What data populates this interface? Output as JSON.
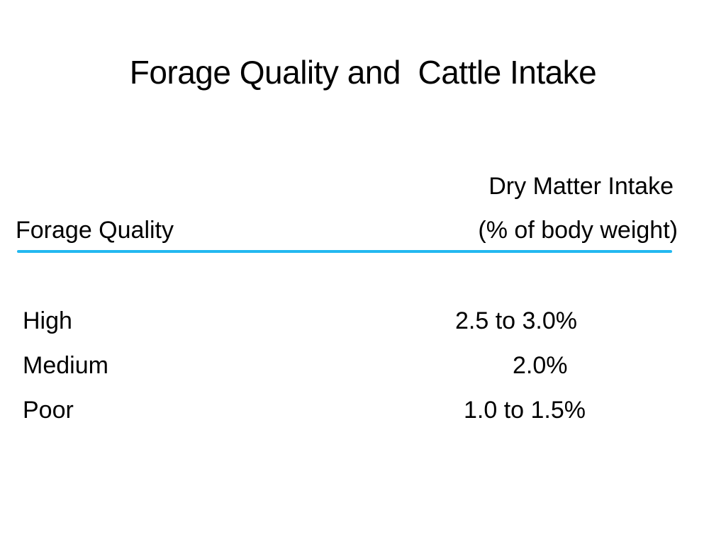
{
  "slide": {
    "title": "Forage Quality and  Cattle Intake",
    "header": {
      "quality_label": "Forage Quality",
      "intake_label": "Dry Matter Intake",
      "intake_unit": "(% of body weight)"
    },
    "rows": [
      {
        "quality": "High",
        "intake": "2.5 to 3.0%"
      },
      {
        "quality": "Medium",
        "intake": "2.0%"
      },
      {
        "quality": "Poor",
        "intake": "1.0 to 1.5%"
      }
    ],
    "colors": {
      "background": "#ffffff",
      "text": "#000000",
      "rule": "#22b8f0"
    }
  }
}
